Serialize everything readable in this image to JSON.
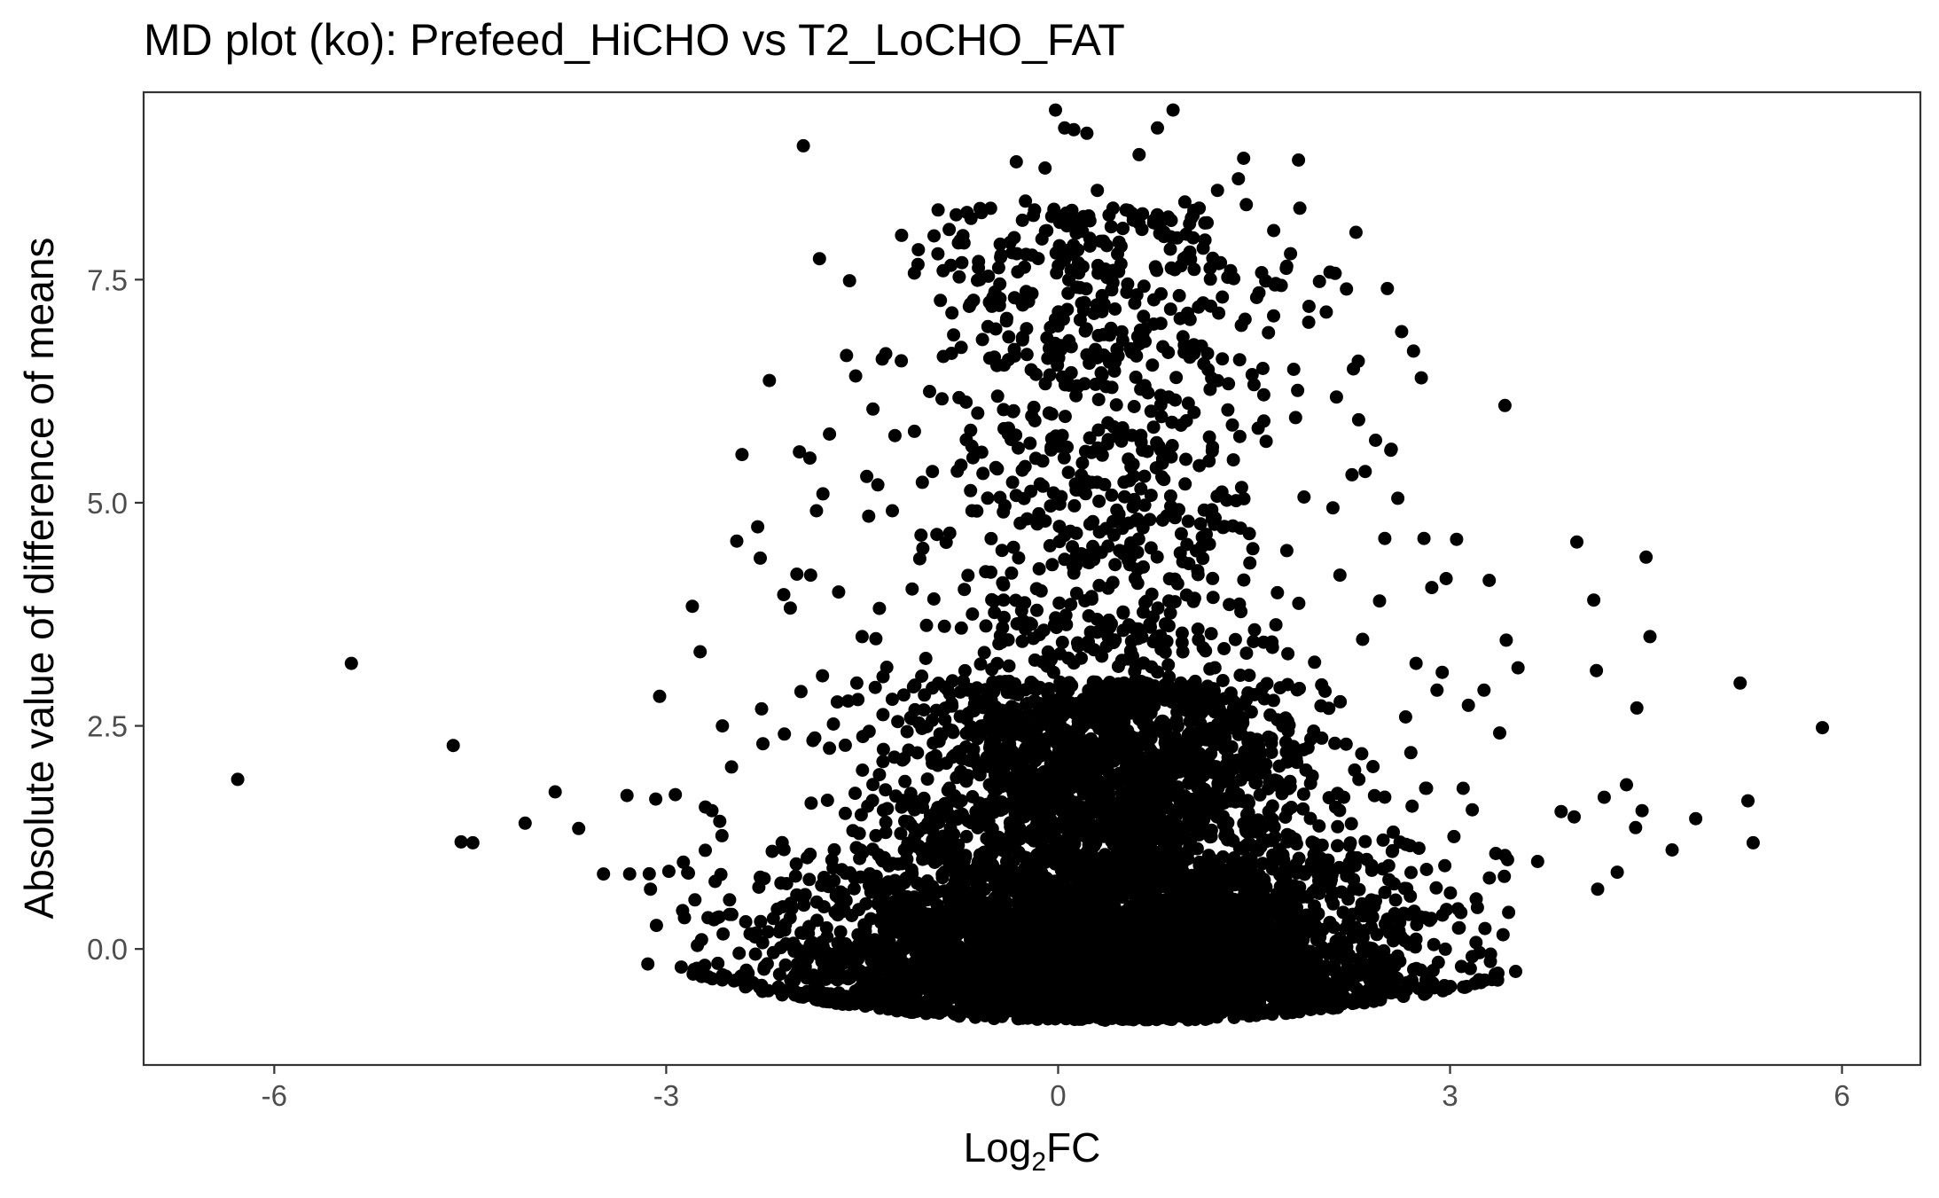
{
  "chart_data": {
    "type": "scatter",
    "title": "MD plot (ko): Prefeed_HiCHO vs T2_LoCHO_FAT",
    "xlabel_main": "Log",
    "xlabel_sub": "2",
    "xlabel_tail": "FC",
    "ylabel": "Absolute value of difference of means",
    "xlim": [
      -7,
      6.6
    ],
    "ylim": [
      -1.3,
      9.6
    ],
    "x_ticks": [
      -6,
      -3,
      0,
      3,
      6
    ],
    "x_tick_labels": [
      "-6",
      "-3",
      "0",
      "3",
      "6"
    ],
    "y_ticks": [
      0,
      2.5,
      5,
      7.5
    ],
    "y_tick_labels": [
      "0.0",
      "2.5",
      "5.0",
      "7.5"
    ],
    "grid": false,
    "legend": "none",
    "point_color": "#000000",
    "n_generated_core_points": 6500,
    "points": [
      [
        -6.28,
        1.9
      ],
      [
        -5.41,
        3.2
      ],
      [
        -4.63,
        2.28
      ],
      [
        -4.57,
        1.2
      ],
      [
        -4.48,
        1.19
      ],
      [
        -4.08,
        1.41
      ],
      [
        -3.85,
        1.76
      ],
      [
        -3.67,
        1.35
      ],
      [
        -3.48,
        0.84
      ],
      [
        -3.3,
        1.72
      ],
      [
        -3.28,
        0.84
      ],
      [
        -3.12,
        0.67
      ],
      [
        -3.08,
        1.68
      ],
      [
        -3.05,
        2.83
      ],
      [
        -2.98,
        0.87
      ],
      [
        -2.93,
        1.73
      ],
      [
        -2.86,
        0.35
      ],
      [
        -2.83,
        0.85
      ],
      [
        -2.8,
        3.84
      ],
      [
        -2.78,
        0.55
      ],
      [
        -2.74,
        3.33
      ],
      [
        -2.7,
        1.59
      ],
      [
        -2.68,
        0.35
      ],
      [
        -2.65,
        1.55
      ],
      [
        -2.61,
        0.35
      ],
      [
        -2.59,
        1.43
      ],
      [
        -2.57,
        2.5
      ],
      [
        -2.5,
        2.04
      ],
      [
        -2.46,
        4.57
      ],
      [
        -2.42,
        5.54
      ],
      [
        -2.3,
        4.73
      ],
      [
        -2.28,
        4.38
      ],
      [
        -2.27,
        2.69
      ],
      [
        -2.26,
        2.3
      ],
      [
        -2.25,
        0.79
      ],
      [
        -2.21,
        6.37
      ],
      [
        -2.1,
        3.97
      ],
      [
        -2.05,
        3.82
      ],
      [
        -2.0,
        4.2
      ],
      [
        -1.98,
        5.57
      ],
      [
        -1.95,
        9.0
      ],
      [
        -1.9,
        5.5
      ],
      [
        -1.85,
        4.91
      ],
      [
        -1.8,
        5.1
      ],
      [
        -1.75,
        5.77
      ],
      [
        -1.72,
        2.52
      ],
      [
        -1.68,
        4.0
      ],
      [
        -1.62,
        6.65
      ],
      [
        -1.55,
        6.42
      ],
      [
        -1.5,
        3.5
      ],
      [
        -1.45,
        4.85
      ],
      [
        -1.38,
        5.2
      ],
      [
        -1.32,
        6.67
      ],
      [
        -1.2,
        6.59
      ],
      [
        -1.1,
        5.8
      ],
      [
        -0.92,
        7.79
      ],
      [
        -0.88,
        7.6
      ],
      [
        -0.82,
        7.66
      ],
      [
        -0.75,
        7.94
      ],
      [
        -0.68,
        7.2
      ],
      [
        -0.6,
        7.5
      ],
      [
        -0.5,
        7.3
      ],
      [
        -0.32,
        8.82
      ],
      [
        -0.25,
        8.38
      ],
      [
        -0.18,
        8.28
      ],
      [
        -0.1,
        8.75
      ],
      [
        -0.02,
        9.4
      ],
      [
        0.05,
        9.2
      ],
      [
        0.12,
        9.18
      ],
      [
        0.22,
        9.14
      ],
      [
        0.3,
        8.5
      ],
      [
        0.42,
        8.3
      ],
      [
        0.52,
        8.28
      ],
      [
        0.62,
        8.9
      ],
      [
        0.76,
        9.2
      ],
      [
        0.88,
        9.4
      ],
      [
        0.97,
        8.37
      ],
      [
        1.08,
        8.3
      ],
      [
        1.22,
        8.5
      ],
      [
        1.32,
        7.6
      ],
      [
        1.38,
        8.63
      ],
      [
        1.42,
        8.86
      ],
      [
        1.44,
        8.34
      ],
      [
        1.52,
        7.3
      ],
      [
        1.65,
        8.05
      ],
      [
        1.75,
        7.65
      ],
      [
        1.84,
        8.84
      ],
      [
        1.85,
        8.3
      ],
      [
        1.92,
        7.2
      ],
      [
        2.0,
        7.48
      ],
      [
        2.12,
        7.57
      ],
      [
        2.26,
        6.5
      ],
      [
        2.28,
        8.03
      ],
      [
        2.3,
        5.93
      ],
      [
        2.35,
        5.35
      ],
      [
        2.43,
        5.7
      ],
      [
        2.46,
        3.9
      ],
      [
        2.5,
        4.6
      ],
      [
        2.52,
        7.4
      ],
      [
        2.55,
        5.6
      ],
      [
        2.6,
        5.05
      ],
      [
        2.66,
        2.6
      ],
      [
        2.7,
        2.2
      ],
      [
        2.72,
        6.7
      ],
      [
        2.74,
        3.2
      ],
      [
        2.78,
        6.4
      ],
      [
        2.8,
        4.6
      ],
      [
        2.82,
        1.8
      ],
      [
        2.86,
        4.05
      ],
      [
        2.9,
        2.9
      ],
      [
        2.94,
        3.1
      ],
      [
        2.97,
        4.15
      ],
      [
        3.03,
        1.26
      ],
      [
        3.05,
        4.59
      ],
      [
        3.06,
        0.45
      ],
      [
        3.1,
        1.8
      ],
      [
        3.14,
        2.73
      ],
      [
        3.17,
        1.56
      ],
      [
        3.2,
        0.56
      ],
      [
        3.26,
        2.9
      ],
      [
        3.3,
        4.13
      ],
      [
        3.35,
        1.07
      ],
      [
        3.38,
        2.42
      ],
      [
        3.42,
        6.09
      ],
      [
        3.43,
        3.46
      ],
      [
        3.44,
        1.0
      ],
      [
        3.52,
        3.15
      ],
      [
        3.67,
        0.98
      ],
      [
        3.85,
        1.54
      ],
      [
        3.95,
        1.48
      ],
      [
        3.97,
        4.56
      ],
      [
        4.1,
        3.91
      ],
      [
        4.12,
        3.12
      ],
      [
        4.13,
        0.67
      ],
      [
        4.18,
        1.7
      ],
      [
        4.28,
        0.86
      ],
      [
        4.35,
        1.84
      ],
      [
        4.42,
        1.36
      ],
      [
        4.43,
        2.7
      ],
      [
        4.47,
        1.55
      ],
      [
        4.5,
        4.39
      ],
      [
        4.53,
        3.5
      ],
      [
        4.7,
        1.11
      ],
      [
        4.88,
        1.46
      ],
      [
        5.22,
        2.98
      ],
      [
        5.28,
        1.66
      ],
      [
        5.32,
        1.19
      ],
      [
        5.85,
        2.48
      ]
    ]
  }
}
